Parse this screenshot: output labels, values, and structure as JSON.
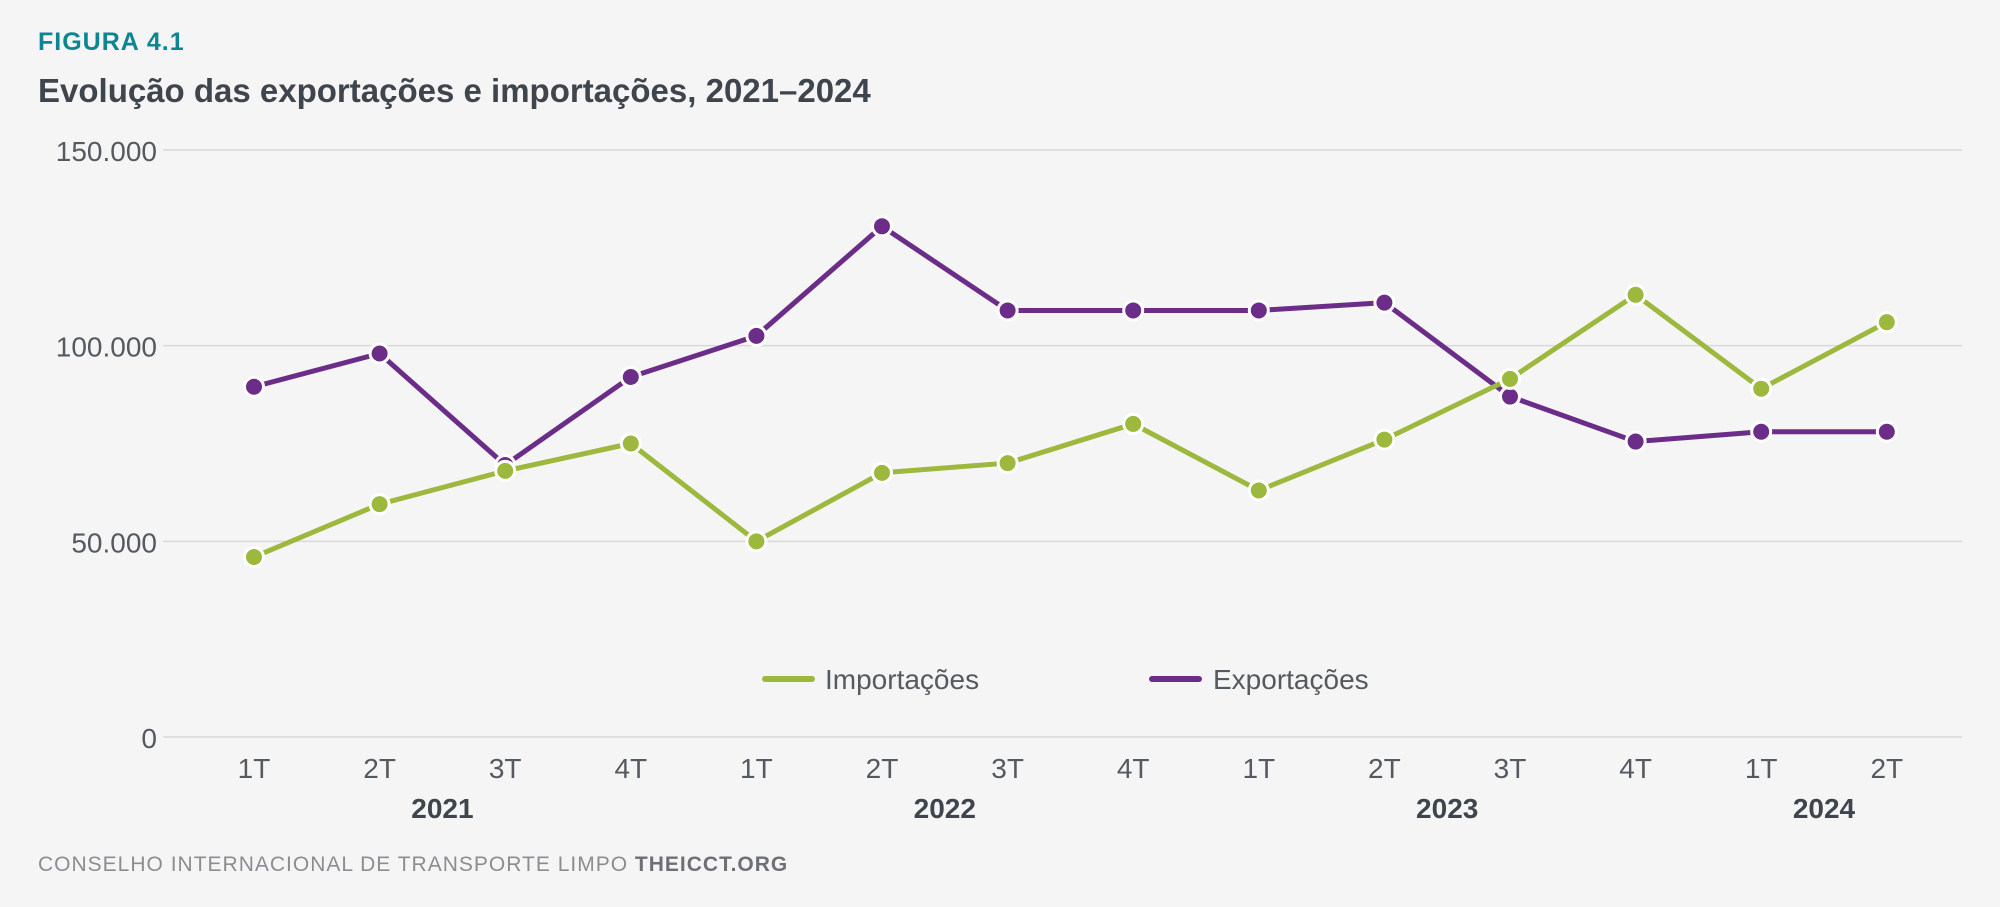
{
  "figure": {
    "label": "FIGURA 4.1",
    "title": "Evolução das exportações e importações, 2021–2024"
  },
  "footer": {
    "org": "CONSELHO INTERNACIONAL DE TRANSPORTE LIMPO",
    "site": "THEICCT.ORG"
  },
  "colors": {
    "importacoes": "#9cb83d",
    "exportacoes": "#6b2d88",
    "grid": "#d9d9d9",
    "axis_text": "#555a60",
    "year_text": "#3f454c",
    "label": "#0f8592"
  },
  "chart_data": {
    "type": "line",
    "title": "Evolução das exportações e importações, 2021–2024",
    "xlabel": "",
    "ylabel": "",
    "ylim": [
      0,
      150000
    ],
    "yticks": [
      {
        "value": 0,
        "label": "0"
      },
      {
        "value": 50000,
        "label": "50.000"
      },
      {
        "value": 100000,
        "label": "100.000"
      },
      {
        "value": 150000,
        "label": "150.000"
      }
    ],
    "grid": true,
    "legend_position": "bottom-center",
    "categories": [
      "1T",
      "2T",
      "3T",
      "4T",
      "1T",
      "2T",
      "3T",
      "4T",
      "1T",
      "2T",
      "3T",
      "4T",
      "1T",
      "2T"
    ],
    "year_groups": [
      {
        "year": "2021",
        "start": 0,
        "end": 3
      },
      {
        "year": "2022",
        "start": 4,
        "end": 7
      },
      {
        "year": "2023",
        "start": 8,
        "end": 11
      },
      {
        "year": "2024",
        "start": 12,
        "end": 13
      }
    ],
    "series": [
      {
        "name": "Importações",
        "color": "#9cb83d",
        "values": [
          46000,
          59500,
          68000,
          75000,
          50000,
          67500,
          70000,
          80000,
          63000,
          76000,
          91500,
          113000,
          89000,
          106000
        ]
      },
      {
        "name": "Exportações",
        "color": "#6b2d88",
        "values": [
          89500,
          98000,
          69500,
          92000,
          102500,
          130500,
          109000,
          109000,
          109000,
          111000,
          87000,
          75500,
          78000,
          78000
        ]
      }
    ]
  }
}
